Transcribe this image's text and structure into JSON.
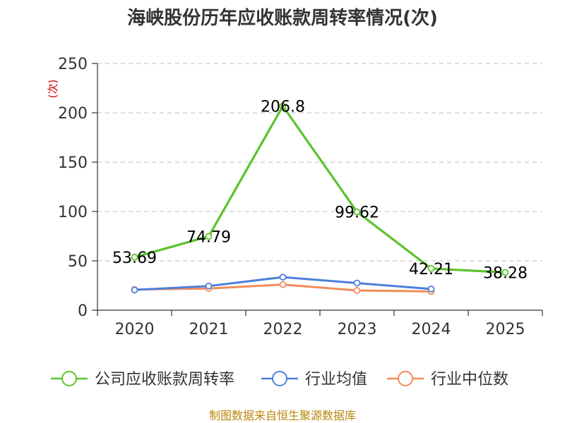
{
  "chart_data": {
    "type": "line",
    "title": "海峡股份历年应收账款周转率情况(次)",
    "ylabel": "(次)",
    "xlabel": "",
    "categories": [
      "2020",
      "2021",
      "2022",
      "2023",
      "2024",
      "2025"
    ],
    "ylim": [
      0,
      250
    ],
    "yticks": [
      0,
      50,
      100,
      150,
      200,
      250
    ],
    "grid": true,
    "legend_position": "bottom",
    "series": [
      {
        "name": "公司应收账款周转率",
        "color": "#5cc22e",
        "values": [
          53.69,
          74.79,
          206.8,
          99.62,
          42.21,
          38.28
        ],
        "labels": [
          "53.69",
          "74.79",
          "206.8",
          "99.62",
          "42.21",
          "38.28"
        ]
      },
      {
        "name": "行业均值",
        "color": "#4f7fdc",
        "values": [
          20.5,
          24.5,
          33.5,
          27.5,
          21.5,
          null
        ]
      },
      {
        "name": "行业中位数",
        "color": "#f28c5a",
        "values": [
          21,
          22,
          26,
          20,
          19,
          null
        ]
      }
    ],
    "source": "制图数据来自恒生聚源数据库"
  }
}
